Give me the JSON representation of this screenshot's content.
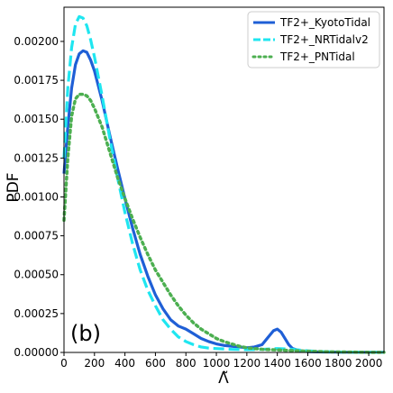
{
  "chart_data": {
    "type": "line",
    "panel_label": "(b)",
    "xlabel": "Λ̃",
    "ylabel": "PDF",
    "xlim": [
      0,
      2100
    ],
    "ylim": [
      0,
      0.00222
    ],
    "xticks": [
      "0",
      "200",
      "400",
      "600",
      "800",
      "1000",
      "1200",
      "1400",
      "1600",
      "1800",
      "2000"
    ],
    "xtick_values": [
      0,
      200,
      400,
      600,
      800,
      1000,
      1200,
      1400,
      1600,
      1800,
      2000
    ],
    "yticks": [
      "0.00000",
      "0.00025",
      "0.00050",
      "0.00075",
      "0.00100",
      "0.00125",
      "0.00150",
      "0.00175",
      "0.00200"
    ],
    "ytick_values": [
      0,
      0.00025,
      0.0005,
      0.00075,
      0.001,
      0.00125,
      0.0015,
      0.00175,
      0.002
    ],
    "grid": false,
    "legend_position": "top-right",
    "series": [
      {
        "name": "TF2+_KyotoTidal",
        "color": "#1f5fd6",
        "style": "solid",
        "x": [
          0,
          25,
          50,
          75,
          100,
          125,
          150,
          175,
          200,
          250,
          300,
          350,
          400,
          450,
          500,
          550,
          600,
          650,
          700,
          750,
          800,
          850,
          900,
          950,
          1000,
          1050,
          1100,
          1150,
          1200,
          1250,
          1300,
          1325,
          1350,
          1375,
          1400,
          1425,
          1450,
          1475,
          1500,
          1550,
          1600,
          1700,
          1800,
          1900,
          2000,
          2100
        ],
        "y": [
          0.00115,
          0.00145,
          0.0017,
          0.00185,
          0.00192,
          0.00194,
          0.00193,
          0.00188,
          0.00181,
          0.00162,
          0.0014,
          0.00119,
          0.00099,
          0.0008,
          0.00063,
          0.00049,
          0.00037,
          0.00028,
          0.00021,
          0.00017,
          0.00015,
          0.00012,
          9e-05,
          7e-05,
          5.5e-05,
          4.5e-05,
          4e-05,
          3.5e-05,
          3e-05,
          3.5e-05,
          5e-05,
          8e-05,
          0.00011,
          0.00014,
          0.00015,
          0.00013,
          9e-05,
          5e-05,
          2.5e-05,
          1e-05,
          5e-06,
          3e-06,
          2e-06,
          1e-06,
          1e-06,
          5e-07
        ]
      },
      {
        "name": "TF2+_NRTidalv2",
        "color": "#1fe6f0",
        "style": "dashed",
        "x": [
          0,
          25,
          50,
          75,
          100,
          125,
          150,
          175,
          200,
          250,
          300,
          350,
          400,
          450,
          500,
          550,
          600,
          650,
          700,
          750,
          800,
          850,
          900,
          950,
          1000,
          1100,
          1200,
          1300,
          1400,
          1500,
          1600,
          1700,
          1800,
          1900,
          2000,
          2100
        ],
        "y": [
          0.00125,
          0.0017,
          0.00196,
          0.00211,
          0.00216,
          0.00215,
          0.0021,
          0.00201,
          0.0019,
          0.00165,
          0.00138,
          0.00113,
          0.0009,
          0.0007,
          0.00053,
          0.0004,
          0.0003,
          0.00021,
          0.00015,
          0.0001,
          7e-05,
          5e-05,
          3.5e-05,
          2.8e-05,
          2.5e-05,
          2e-05,
          1.8e-05,
          2e-05,
          2.5e-05,
          2e-05,
          1e-05,
          5e-06,
          3e-06,
          2e-06,
          1e-06,
          5e-07
        ]
      },
      {
        "name": "TF2+_PNTidal",
        "color": "#4caf50",
        "style": "dotted",
        "x": [
          0,
          25,
          50,
          75,
          100,
          125,
          150,
          175,
          200,
          250,
          300,
          350,
          400,
          450,
          500,
          550,
          600,
          650,
          700,
          750,
          800,
          850,
          900,
          950,
          1000,
          1050,
          1100,
          1150,
          1200,
          1250,
          1300,
          1350,
          1400,
          1450,
          1500,
          1600,
          1700,
          1800,
          1900,
          2000,
          2100
        ],
        "y": [
          0.00085,
          0.00125,
          0.00152,
          0.00163,
          0.00166,
          0.00166,
          0.00165,
          0.00162,
          0.00157,
          0.00145,
          0.00129,
          0.00113,
          0.00099,
          0.00086,
          0.00074,
          0.00063,
          0.00053,
          0.00045,
          0.00037,
          0.0003,
          0.00024,
          0.00019,
          0.00015,
          0.00012,
          9e-05,
          7e-05,
          5.5e-05,
          4e-05,
          3e-05,
          2.5e-05,
          2e-05,
          1.8e-05,
          1.6e-05,
          1.4e-05,
          1.2e-05,
          8e-06,
          5e-06,
          3e-06,
          2e-06,
          1e-06,
          5e-07
        ]
      }
    ]
  }
}
